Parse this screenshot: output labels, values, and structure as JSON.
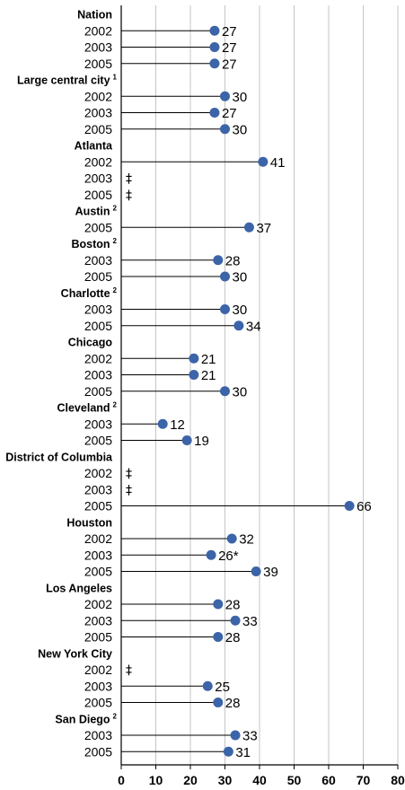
{
  "chart_data": {
    "type": "dot",
    "xlim": [
      0,
      80
    ],
    "x_ticks": [
      "0",
      "10",
      "20",
      "30",
      "40",
      "50",
      "60",
      "70",
      "80"
    ],
    "grid": "vertical",
    "point_color": "#3c64a8",
    "groups": [
      {
        "name": "Nation",
        "sup": "",
        "rows": [
          {
            "year": "2002",
            "value": 27,
            "label": "27"
          },
          {
            "year": "2003",
            "value": 27,
            "label": "27"
          },
          {
            "year": "2005",
            "value": 27,
            "label": "27"
          }
        ]
      },
      {
        "name": "Large central city",
        "sup": "1",
        "rows": [
          {
            "year": "2002",
            "value": 30,
            "label": "30"
          },
          {
            "year": "2003",
            "value": 27,
            "label": "27"
          },
          {
            "year": "2005",
            "value": 30,
            "label": "30"
          }
        ]
      },
      {
        "name": "Atlanta",
        "sup": "",
        "rows": [
          {
            "year": "2002",
            "value": 41,
            "label": "41"
          },
          {
            "year": "2003",
            "value": null,
            "label": "‡"
          },
          {
            "year": "2005",
            "value": null,
            "label": "‡"
          }
        ]
      },
      {
        "name": "Austin",
        "sup": "2",
        "rows": [
          {
            "year": "2005",
            "value": 37,
            "label": "37"
          }
        ]
      },
      {
        "name": "Boston",
        "sup": "2",
        "rows": [
          {
            "year": "2003",
            "value": 28,
            "label": "28"
          },
          {
            "year": "2005",
            "value": 30,
            "label": "30"
          }
        ]
      },
      {
        "name": "Charlotte",
        "sup": "2",
        "rows": [
          {
            "year": "2003",
            "value": 30,
            "label": "30"
          },
          {
            "year": "2005",
            "value": 34,
            "label": "34"
          }
        ]
      },
      {
        "name": "Chicago",
        "sup": "",
        "rows": [
          {
            "year": "2002",
            "value": 21,
            "label": "21"
          },
          {
            "year": "2003",
            "value": 21,
            "label": "21"
          },
          {
            "year": "2005",
            "value": 30,
            "label": "30"
          }
        ]
      },
      {
        "name": "Cleveland",
        "sup": "2",
        "rows": [
          {
            "year": "2003",
            "value": 12,
            "label": "12"
          },
          {
            "year": "2005",
            "value": 19,
            "label": "19"
          }
        ]
      },
      {
        "name": "District of Columbia",
        "sup": "",
        "rows": [
          {
            "year": "2002",
            "value": null,
            "label": "‡"
          },
          {
            "year": "2003",
            "value": null,
            "label": "‡"
          },
          {
            "year": "2005",
            "value": 66,
            "label": "66"
          }
        ]
      },
      {
        "name": "Houston",
        "sup": "",
        "rows": [
          {
            "year": "2002",
            "value": 32,
            "label": "32"
          },
          {
            "year": "2003",
            "value": 26,
            "label": "26*"
          },
          {
            "year": "2005",
            "value": 39,
            "label": "39"
          }
        ]
      },
      {
        "name": "Los Angeles",
        "sup": "",
        "rows": [
          {
            "year": "2002",
            "value": 28,
            "label": "28"
          },
          {
            "year": "2003",
            "value": 33,
            "label": "33"
          },
          {
            "year": "2005",
            "value": 28,
            "label": "28"
          }
        ]
      },
      {
        "name": "New York City",
        "sup": "",
        "rows": [
          {
            "year": "2002",
            "value": null,
            "label": "‡"
          },
          {
            "year": "2003",
            "value": 25,
            "label": "25"
          },
          {
            "year": "2005",
            "value": 28,
            "label": "28"
          }
        ]
      },
      {
        "name": "San Diego",
        "sup": "2",
        "rows": [
          {
            "year": "2003",
            "value": 33,
            "label": "33"
          },
          {
            "year": "2005",
            "value": 31,
            "label": "31"
          }
        ]
      }
    ]
  }
}
